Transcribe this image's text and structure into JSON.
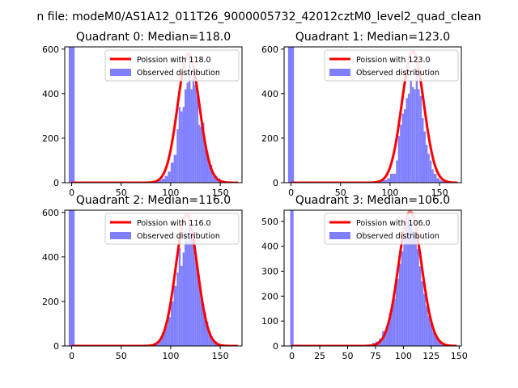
{
  "figure": {
    "suptitle": "n file: modeM0/AS1A12_011T26_9000005732_42012cztM0_level2_quad_clean"
  },
  "colors": {
    "hist": "#8080ff",
    "curve": "#ff0000",
    "curve_head": "#ff8080"
  },
  "chart_data": [
    {
      "type": "bar",
      "title": "Quadrant 0: Median=118.0",
      "xlim": [
        -7,
        172
      ],
      "ylim": [
        0,
        610
      ],
      "xticks": [
        0,
        50,
        100,
        150
      ],
      "yticks": [
        0,
        200,
        400,
        600
      ],
      "median": 118.0,
      "scale": 580,
      "sigma": 10.9,
      "legend": {
        "position": "top-right",
        "curve_label": "Poission with 118.0",
        "hist_label": "Observed distribution"
      },
      "bins": [
        [
          -3,
          3,
          610
        ],
        [
          3,
          9,
          0
        ],
        [
          9,
          15,
          0
        ],
        [
          15,
          21,
          0
        ],
        [
          21,
          27,
          0
        ],
        [
          27,
          33,
          0
        ],
        [
          33,
          39,
          0
        ],
        [
          39,
          45,
          0
        ],
        [
          45,
          51,
          0
        ],
        [
          51,
          57,
          0
        ],
        [
          57,
          63,
          0
        ],
        [
          63,
          69,
          0
        ],
        [
          69,
          75,
          0
        ],
        [
          75,
          80,
          2
        ],
        [
          80,
          84,
          3
        ],
        [
          84,
          88,
          8
        ],
        [
          88,
          91,
          12
        ],
        [
          91,
          94,
          18
        ],
        [
          94,
          97,
          30
        ],
        [
          97,
          100,
          50
        ],
        [
          100,
          103,
          90
        ],
        [
          103,
          106,
          125
        ],
        [
          106,
          108,
          240
        ],
        [
          108,
          110,
          340
        ],
        [
          110,
          112,
          320
        ],
        [
          112,
          114,
          340
        ],
        [
          114,
          116,
          420
        ],
        [
          116,
          118,
          450
        ],
        [
          118,
          120,
          560
        ],
        [
          120,
          122,
          420
        ],
        [
          122,
          124,
          520
        ],
        [
          124,
          126,
          440
        ],
        [
          126,
          128,
          390
        ],
        [
          128,
          130,
          260
        ],
        [
          130,
          132,
          250
        ],
        [
          132,
          134,
          270
        ],
        [
          134,
          136,
          180
        ],
        [
          136,
          138,
          140
        ],
        [
          138,
          140,
          100
        ],
        [
          140,
          142,
          80
        ],
        [
          142,
          144,
          40
        ],
        [
          144,
          147,
          30
        ],
        [
          147,
          150,
          20
        ],
        [
          150,
          154,
          10
        ],
        [
          154,
          158,
          4
        ],
        [
          158,
          164,
          2
        ]
      ]
    },
    {
      "type": "bar",
      "title": "Quadrant 1: Median=123.0",
      "xlim": [
        -7,
        172
      ],
      "ylim": [
        0,
        610
      ],
      "xticks": [
        0,
        50,
        100,
        150
      ],
      "yticks": [
        0,
        200,
        400,
        600
      ],
      "median": 123.0,
      "scale": 590,
      "sigma": 11.1,
      "legend": {
        "position": "top-right",
        "curve_label": "Poission with 123.0",
        "hist_label": "Observed distribution"
      },
      "bins": [
        [
          -3,
          3,
          610
        ],
        [
          3,
          9,
          0
        ],
        [
          9,
          15,
          0
        ],
        [
          15,
          21,
          0
        ],
        [
          21,
          27,
          0
        ],
        [
          27,
          33,
          0
        ],
        [
          33,
          39,
          0
        ],
        [
          39,
          45,
          0
        ],
        [
          45,
          51,
          0
        ],
        [
          51,
          57,
          0
        ],
        [
          57,
          63,
          0
        ],
        [
          63,
          69,
          0
        ],
        [
          69,
          75,
          0
        ],
        [
          75,
          80,
          0
        ],
        [
          80,
          84,
          2
        ],
        [
          84,
          88,
          2
        ],
        [
          88,
          91,
          10
        ],
        [
          91,
          94,
          15
        ],
        [
          94,
          97,
          12
        ],
        [
          97,
          100,
          20
        ],
        [
          100,
          103,
          40
        ],
        [
          103,
          106,
          40
        ],
        [
          106,
          108,
          100
        ],
        [
          108,
          110,
          210
        ],
        [
          110,
          112,
          260
        ],
        [
          112,
          114,
          310
        ],
        [
          114,
          116,
          330
        ],
        [
          116,
          118,
          380
        ],
        [
          118,
          120,
          400
        ],
        [
          120,
          122,
          460
        ],
        [
          122,
          124,
          430
        ],
        [
          124,
          126,
          420
        ],
        [
          126,
          128,
          500
        ],
        [
          128,
          130,
          420
        ],
        [
          130,
          132,
          390
        ],
        [
          132,
          134,
          290
        ],
        [
          134,
          136,
          230
        ],
        [
          136,
          138,
          170
        ],
        [
          138,
          140,
          130
        ],
        [
          140,
          142,
          100
        ],
        [
          142,
          144,
          60
        ],
        [
          144,
          147,
          40
        ],
        [
          147,
          150,
          20
        ],
        [
          150,
          154,
          10
        ],
        [
          154,
          158,
          4
        ],
        [
          158,
          164,
          2
        ]
      ]
    },
    {
      "type": "bar",
      "title": "Quadrant 2: Median=116.0",
      "xlim": [
        -7,
        172
      ],
      "ylim": [
        0,
        610
      ],
      "xticks": [
        0,
        50,
        100,
        150
      ],
      "yticks": [
        0,
        200,
        400,
        600
      ],
      "median": 116.0,
      "scale": 590,
      "sigma": 10.8,
      "legend": {
        "position": "top-right",
        "curve_label": "Poission with 116.0",
        "hist_label": "Observed distribution"
      },
      "bins": [
        [
          -3,
          3,
          610
        ],
        [
          3,
          9,
          0
        ],
        [
          9,
          15,
          0
        ],
        [
          15,
          21,
          0
        ],
        [
          21,
          27,
          0
        ],
        [
          27,
          33,
          0
        ],
        [
          33,
          39,
          0
        ],
        [
          39,
          45,
          0
        ],
        [
          45,
          51,
          0
        ],
        [
          51,
          57,
          0
        ],
        [
          57,
          63,
          0
        ],
        [
          63,
          69,
          0
        ],
        [
          69,
          75,
          0
        ],
        [
          75,
          80,
          2
        ],
        [
          80,
          84,
          8
        ],
        [
          84,
          88,
          15
        ],
        [
          88,
          91,
          30
        ],
        [
          91,
          94,
          60
        ],
        [
          94,
          97,
          90
        ],
        [
          97,
          100,
          130
        ],
        [
          100,
          103,
          200
        ],
        [
          103,
          106,
          270
        ],
        [
          106,
          108,
          330
        ],
        [
          108,
          110,
          440
        ],
        [
          110,
          112,
          360
        ],
        [
          112,
          114,
          420
        ],
        [
          114,
          116,
          520
        ],
        [
          116,
          118,
          470
        ],
        [
          118,
          120,
          590
        ],
        [
          120,
          122,
          500
        ],
        [
          122,
          124,
          490
        ],
        [
          124,
          126,
          400
        ],
        [
          126,
          128,
          360
        ],
        [
          128,
          130,
          290
        ],
        [
          130,
          132,
          210
        ],
        [
          132,
          134,
          190
        ],
        [
          134,
          136,
          150
        ],
        [
          136,
          138,
          110
        ],
        [
          138,
          140,
          70
        ],
        [
          140,
          142,
          40
        ],
        [
          142,
          144,
          30
        ],
        [
          144,
          147,
          20
        ],
        [
          147,
          150,
          10
        ],
        [
          150,
          154,
          4
        ],
        [
          154,
          158,
          2
        ],
        [
          158,
          164,
          0
        ]
      ]
    },
    {
      "type": "bar",
      "title": "Quadrant 3: Median=106.0",
      "xlim": [
        -7,
        152
      ],
      "ylim": [
        0,
        545
      ],
      "xticks": [
        0,
        25,
        50,
        75,
        100,
        125,
        150
      ],
      "yticks": [
        0,
        100,
        200,
        300,
        400,
        500
      ],
      "median": 106.0,
      "scale": 540,
      "sigma": 10.3,
      "legend": {
        "position": "top-right",
        "curve_label": "Poission with 106.0",
        "hist_label": "Observed distribution"
      },
      "bins": [
        [
          -1.5,
          1.5,
          545
        ],
        [
          1.5,
          20,
          0
        ],
        [
          20,
          23,
          3
        ],
        [
          23,
          26,
          5
        ],
        [
          26,
          29,
          2
        ],
        [
          29,
          40,
          0
        ],
        [
          40,
          43,
          4
        ],
        [
          43,
          46,
          2
        ],
        [
          46,
          49,
          4
        ],
        [
          49,
          55,
          0
        ],
        [
          55,
          58,
          5
        ],
        [
          58,
          61,
          3
        ],
        [
          61,
          68,
          4
        ],
        [
          68,
          72,
          6
        ],
        [
          72,
          75,
          12
        ],
        [
          75,
          78,
          18
        ],
        [
          78,
          81,
          30
        ],
        [
          81,
          84,
          60
        ],
        [
          84,
          87,
          80
        ],
        [
          87,
          90,
          130
        ],
        [
          90,
          93,
          190
        ],
        [
          93,
          96,
          270
        ],
        [
          96,
          98,
          330
        ],
        [
          98,
          100,
          380
        ],
        [
          100,
          102,
          440
        ],
        [
          102,
          104,
          500
        ],
        [
          104,
          106,
          520
        ],
        [
          106,
          108,
          490
        ],
        [
          108,
          110,
          460
        ],
        [
          110,
          112,
          440
        ],
        [
          112,
          114,
          390
        ],
        [
          114,
          116,
          320
        ],
        [
          116,
          118,
          260
        ],
        [
          118,
          120,
          210
        ],
        [
          120,
          122,
          160
        ],
        [
          122,
          124,
          120
        ],
        [
          124,
          126,
          90
        ],
        [
          126,
          128,
          60
        ],
        [
          128,
          131,
          40
        ],
        [
          131,
          134,
          20
        ],
        [
          134,
          137,
          10
        ],
        [
          137,
          141,
          4
        ],
        [
          141,
          146,
          2
        ]
      ]
    }
  ]
}
